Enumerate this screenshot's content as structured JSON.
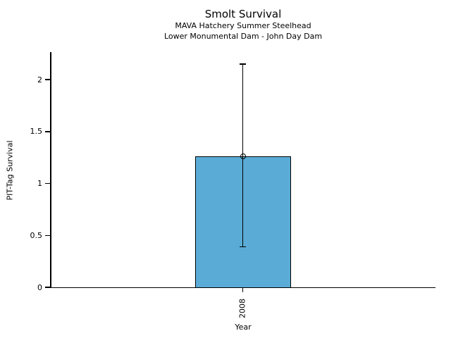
{
  "chart_data": {
    "type": "bar",
    "title": "Smolt Survival",
    "subtitle1": "MAVA Hatchery Summer Steelhead",
    "subtitle2": "Lower Monumental Dam - John Day Dam",
    "xlabel": "Year",
    "ylabel": "PIT-Tag Survival",
    "categories": [
      "2008"
    ],
    "values": [
      1.26
    ],
    "error_low": [
      0.39
    ],
    "error_high": [
      2.15
    ],
    "ylim": [
      0,
      2.26
    ],
    "yticks": [
      0,
      0.5,
      1,
      1.5,
      2
    ],
    "ytick_labels": [
      "0",
      "0.5",
      "1",
      "1.5",
      "2"
    ],
    "bar_color": "#5AACD6",
    "edge_color": "#000000",
    "grid": false,
    "legend_position": "none",
    "marker_style": "open-circle"
  }
}
